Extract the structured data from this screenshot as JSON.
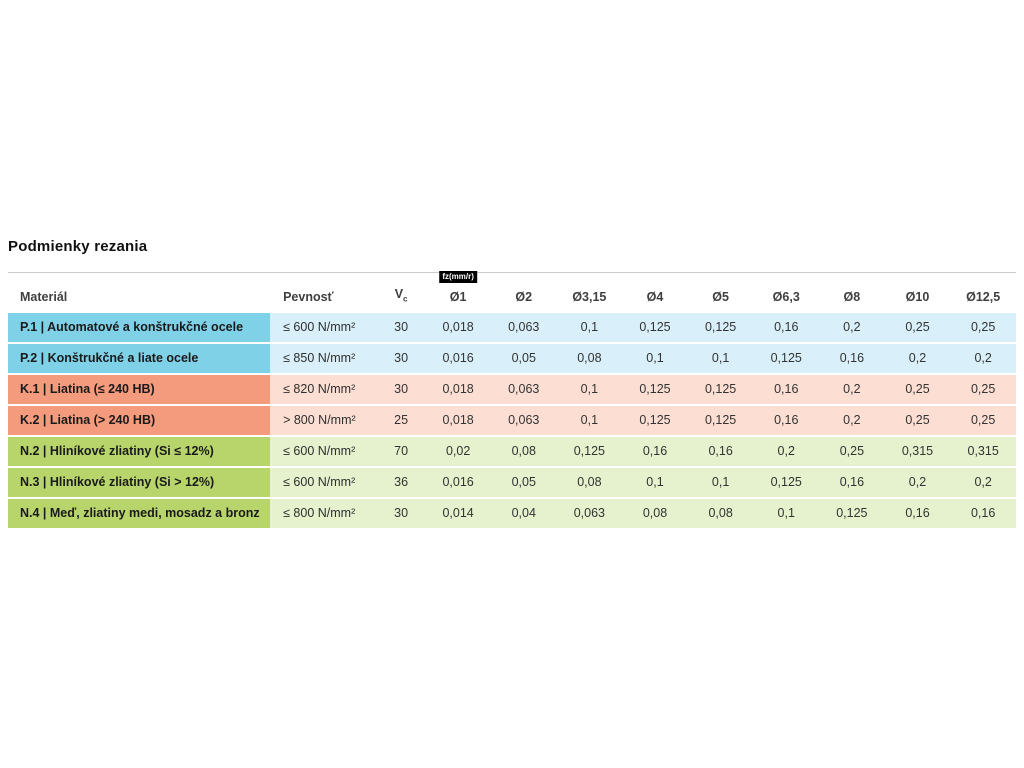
{
  "page": {
    "title": "Podmienky rezania"
  },
  "table": {
    "header": {
      "material": "Materiál",
      "pevnost": "Pevnosť",
      "vc_main": "V",
      "vc_sub": "c",
      "fz_badge": "fz(mm/r)",
      "diameters": [
        "Ø1",
        "Ø2",
        "Ø3,15",
        "Ø4",
        "Ø5",
        "Ø6,3",
        "Ø8",
        "Ø10",
        "Ø12,5"
      ]
    },
    "colors": {
      "blue_strong": "#7fd1e8",
      "blue_light": "#d9f0fa",
      "salmon_strong": "#f59b7d",
      "salmon_light": "#fcded3",
      "green_strong": "#b7d56b",
      "green_light": "#e6f1cd"
    },
    "rows": [
      {
        "color": "blue",
        "material": "P.1 | Automatové a konštrukčné ocele",
        "pevnost": "≤ 600 N/mm²",
        "vc": "30",
        "fz": [
          "0,018",
          "0,063",
          "0,1",
          "0,125",
          "0,125",
          "0,16",
          "0,2",
          "0,25",
          "0,25"
        ]
      },
      {
        "color": "blue",
        "material": "P.2 | Konštrukčné a liate ocele",
        "pevnost": "≤ 850 N/mm²",
        "vc": "30",
        "fz": [
          "0,016",
          "0,05",
          "0,08",
          "0,1",
          "0,1",
          "0,125",
          "0,16",
          "0,2",
          "0,2"
        ]
      },
      {
        "color": "salmon",
        "material": "K.1 | Liatina (≤ 240 HB)",
        "pevnost": "≤ 820 N/mm²",
        "vc": "30",
        "fz": [
          "0,018",
          "0,063",
          "0,1",
          "0,125",
          "0,125",
          "0,16",
          "0,2",
          "0,25",
          "0,25"
        ]
      },
      {
        "color": "salmon",
        "material": "K.2 | Liatina (> 240 HB)",
        "pevnost": "> 800 N/mm²",
        "vc": "25",
        "fz": [
          "0,018",
          "0,063",
          "0,1",
          "0,125",
          "0,125",
          "0,16",
          "0,2",
          "0,25",
          "0,25"
        ]
      },
      {
        "color": "green",
        "material": "N.2 | Hliníkové zliatiny (Si ≤ 12%)",
        "pevnost": "≤ 600 N/mm²",
        "vc": "70",
        "fz": [
          "0,02",
          "0,08",
          "0,125",
          "0,16",
          "0,16",
          "0,2",
          "0,25",
          "0,315",
          "0,315"
        ]
      },
      {
        "color": "green",
        "material": "N.3 | Hliníkové zliatiny (Si > 12%)",
        "pevnost": "≤ 600 N/mm²",
        "vc": "36",
        "fz": [
          "0,016",
          "0,05",
          "0,08",
          "0,1",
          "0,1",
          "0,125",
          "0,16",
          "0,2",
          "0,2"
        ]
      },
      {
        "color": "green",
        "material": "N.4 | Meď, zliatiny medi, mosadz a bronz",
        "pevnost": "≤ 800 N/mm²",
        "vc": "30",
        "fz": [
          "0,014",
          "0,04",
          "0,063",
          "0,08",
          "0,08",
          "0,1",
          "0,125",
          "0,16",
          "0,16"
        ]
      }
    ]
  }
}
